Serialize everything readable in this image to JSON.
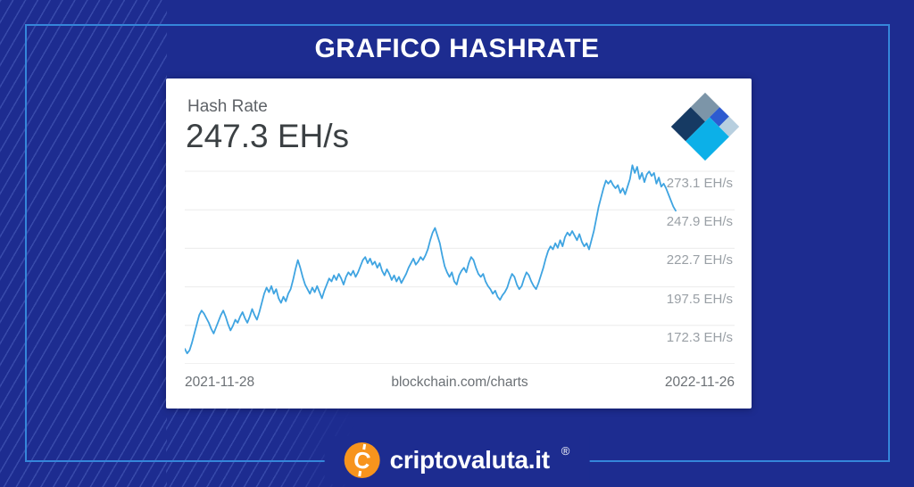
{
  "page": {
    "title": "GRAFICO HASHRATE",
    "background_color": "#1d2c90",
    "frame_border_color": "#3586da"
  },
  "card": {
    "metric_label": "Hash Rate",
    "metric_value": "247.3 EH/s"
  },
  "branding": {
    "site_name": "criptovaluta.it",
    "registered_mark": "®",
    "coin_letter": "C",
    "coin_color": "#f7941d"
  },
  "blockchain_logo_colors": {
    "slate": "#7c95a8",
    "royal": "#2d5bd0",
    "pale": "#b7cfdf",
    "navy": "#163a63",
    "cyan": "#0cb0e8"
  },
  "chart_data": {
    "type": "line",
    "title": "Hash Rate",
    "current_value": 247.3,
    "current_value_label": "247.3 EH/s",
    "unit": "EH/s",
    "grid": true,
    "legend": false,
    "line_color": "#3fa4e1",
    "x_axis": {
      "start_label": "2021-11-28",
      "center_label": "blockchain.com/charts",
      "end_label": "2022-11-26"
    },
    "y_axis": {
      "tick_labels": [
        "273.1 EH/s",
        "247.9 EH/s",
        "222.7 EH/s",
        "197.5 EH/s",
        "172.3 EH/s"
      ],
      "tick_values": [
        273.1,
        247.9,
        222.7,
        197.5,
        172.3
      ],
      "tick_step": 25.2,
      "side": "right"
    },
    "x_range_dates": [
      "2021-11-28",
      "2022-11-26"
    ],
    "values": [
      157,
      154,
      156,
      161,
      167,
      173,
      179,
      182,
      180,
      177,
      174,
      170,
      167,
      171,
      175,
      179,
      182,
      178,
      173,
      169,
      172,
      176,
      174,
      178,
      181,
      177,
      174,
      178,
      183,
      179,
      176,
      181,
      187,
      193,
      197,
      194,
      198,
      193,
      196,
      190,
      187,
      191,
      188,
      193,
      196,
      202,
      209,
      215,
      210,
      204,
      199,
      196,
      193,
      197,
      194,
      198,
      194,
      190,
      195,
      199,
      203,
      201,
      205,
      202,
      206,
      203,
      199,
      204,
      207,
      205,
      208,
      204,
      207,
      211,
      215,
      217,
      213,
      216,
      212,
      214,
      210,
      213,
      208,
      205,
      209,
      206,
      202,
      205,
      201,
      204,
      200,
      203,
      206,
      210,
      213,
      216,
      212,
      214,
      217,
      215,
      218,
      222,
      228,
      233,
      236,
      231,
      226,
      218,
      211,
      207,
      204,
      207,
      201,
      199,
      205,
      208,
      210,
      207,
      213,
      217,
      215,
      210,
      206,
      204,
      206,
      201,
      198,
      196,
      193,
      195,
      191,
      189,
      192,
      194,
      197,
      202,
      206,
      204,
      199,
      196,
      198,
      203,
      207,
      205,
      201,
      198,
      196,
      200,
      205,
      210,
      216,
      221,
      224,
      222,
      226,
      223,
      228,
      224,
      230,
      233,
      231,
      234,
      231,
      228,
      232,
      227,
      224,
      226,
      222,
      228,
      234,
      242,
      250,
      256,
      262,
      267,
      265,
      267,
      264,
      262,
      264,
      259,
      262,
      258,
      263,
      268,
      277,
      272,
      276,
      268,
      272,
      266,
      271,
      273,
      270,
      272,
      265,
      269,
      263,
      265,
      262,
      258,
      254,
      250,
      247.3
    ]
  }
}
